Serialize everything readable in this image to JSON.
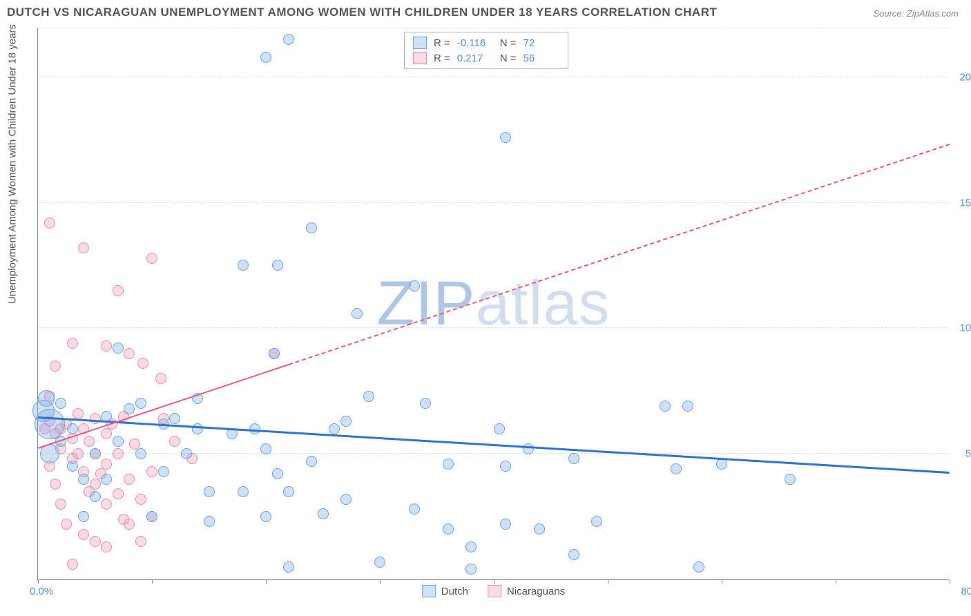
{
  "title": "DUTCH VS NICARAGUAN UNEMPLOYMENT AMONG WOMEN WITH CHILDREN UNDER 18 YEARS CORRELATION CHART",
  "source": "Source: ZipAtlas.com",
  "ylabel": "Unemployment Among Women with Children Under 18 years",
  "watermark": {
    "z": "ZIP",
    "rest": "atlas"
  },
  "chart": {
    "type": "scatter",
    "xlim": [
      0,
      80
    ],
    "ylim": [
      0,
      22
    ],
    "xticks": [
      0,
      10,
      20,
      30,
      40,
      50,
      60,
      70,
      80
    ],
    "xtick_labels": {
      "left": "0.0%",
      "right": "80.0%"
    },
    "yticks": [
      5,
      10,
      15,
      20
    ],
    "ytick_labels": [
      "5.0%",
      "10.0%",
      "15.0%",
      "20.0%"
    ],
    "grid_color": "#dddddd",
    "axis_color": "#888888",
    "background_color": "#ffffff"
  },
  "series": {
    "dutch": {
      "label": "Dutch",
      "fill": "rgba(120,170,230,0.35)",
      "stroke": "#6aa3e0",
      "marker_radius": 8,
      "trend": {
        "color": "#2e74d0",
        "width": 3,
        "x1": 0,
        "y1": 6.4,
        "x2": 80,
        "y2": 4.2,
        "dash_after_x": 80
      },
      "R": "-0.116",
      "N": "72",
      "points": [
        [
          0.5,
          6.7,
          16
        ],
        [
          1,
          6.2,
          22
        ],
        [
          1,
          5,
          14
        ],
        [
          0.7,
          7.2,
          12
        ],
        [
          22,
          21.5,
          8
        ],
        [
          20,
          20.8,
          8
        ],
        [
          41,
          17.6,
          8
        ],
        [
          24,
          14,
          8
        ],
        [
          18,
          12.5,
          8
        ],
        [
          21,
          12.5,
          8
        ],
        [
          33,
          11.7,
          8
        ],
        [
          28,
          10.6,
          8
        ],
        [
          20.7,
          9,
          8
        ],
        [
          7,
          9.2,
          8
        ],
        [
          6,
          6.5,
          8
        ],
        [
          9,
          7,
          8
        ],
        [
          11,
          6.2,
          8
        ],
        [
          12,
          6.4,
          8
        ],
        [
          13,
          5,
          8
        ],
        [
          14,
          6,
          8
        ],
        [
          15,
          3.5,
          8
        ],
        [
          15,
          2.3,
          8
        ],
        [
          17,
          5.8,
          8
        ],
        [
          18,
          3.5,
          8
        ],
        [
          19,
          6,
          8
        ],
        [
          20,
          5.2,
          8
        ],
        [
          20,
          2.5,
          8
        ],
        [
          21,
          4.2,
          8
        ],
        [
          22,
          3.5,
          8
        ],
        [
          22,
          0.5,
          8
        ],
        [
          24,
          4.7,
          8
        ],
        [
          25,
          2.6,
          8
        ],
        [
          26,
          6,
          8
        ],
        [
          27,
          6.3,
          8
        ],
        [
          27,
          3.2,
          8
        ],
        [
          29,
          7.3,
          8
        ],
        [
          30,
          0.7,
          8
        ],
        [
          33,
          2.8,
          8
        ],
        [
          34,
          7,
          8
        ],
        [
          36,
          4.6,
          8
        ],
        [
          36,
          2.0,
          8
        ],
        [
          38,
          1.3,
          8
        ],
        [
          38,
          0.4,
          8
        ],
        [
          40.5,
          6,
          8
        ],
        [
          41,
          2.2,
          8
        ],
        [
          41,
          4.5,
          8
        ],
        [
          43,
          5.2,
          8
        ],
        [
          44,
          2,
          8
        ],
        [
          47,
          1.0,
          8
        ],
        [
          47,
          4.8,
          8
        ],
        [
          49,
          2.3,
          8
        ],
        [
          55,
          6.9,
          8
        ],
        [
          56,
          4.4,
          8
        ],
        [
          57,
          6.9,
          8
        ],
        [
          58,
          0.5,
          8
        ],
        [
          60,
          4.6,
          8
        ],
        [
          66,
          4.0,
          8
        ],
        [
          5,
          5.0,
          8
        ],
        [
          4,
          4.0,
          8
        ],
        [
          3,
          6.0,
          8
        ],
        [
          2,
          7.0,
          8
        ],
        [
          2,
          5.5,
          8
        ],
        [
          3,
          4.5,
          8
        ],
        [
          7,
          5.5,
          8
        ],
        [
          8,
          6.8,
          8
        ],
        [
          10,
          2.5,
          8
        ],
        [
          11,
          4.3,
          8
        ],
        [
          14,
          7.2,
          8
        ],
        [
          9,
          5,
          8
        ],
        [
          6,
          4,
          8
        ],
        [
          5,
          3.3,
          8
        ],
        [
          4,
          2.5,
          8
        ]
      ]
    },
    "nicaraguans": {
      "label": "Nicaraguans",
      "fill": "rgba(240,150,175,0.35)",
      "stroke": "#e88fa8",
      "marker_radius": 8,
      "trend": {
        "color": "#e35a84",
        "width": 2,
        "x1": 0,
        "y1": 5.2,
        "x2": 80,
        "y2": 17.3,
        "dash_after_x": 22
      },
      "R": "0.217",
      "N": "56",
      "points": [
        [
          1,
          14.2,
          8
        ],
        [
          4,
          13.2,
          8
        ],
        [
          10,
          12.8,
          8
        ],
        [
          7,
          11.5,
          8
        ],
        [
          3,
          9.4,
          8
        ],
        [
          6,
          9.3,
          8
        ],
        [
          1.5,
          8.5,
          8
        ],
        [
          8,
          9,
          8
        ],
        [
          9.2,
          8.6,
          8
        ],
        [
          10.8,
          8.0,
          8
        ],
        [
          11,
          6.4,
          8
        ],
        [
          12,
          5.5,
          8
        ],
        [
          13.5,
          4.8,
          8
        ],
        [
          1,
          6.3,
          8
        ],
        [
          1.5,
          5.8,
          8
        ],
        [
          2,
          6.0,
          8
        ],
        [
          2,
          5.2,
          8
        ],
        [
          2.5,
          6.2,
          8
        ],
        [
          3,
          5.6,
          8
        ],
        [
          3,
          4.8,
          8
        ],
        [
          3.5,
          6.6,
          8
        ],
        [
          3.5,
          5.0,
          8
        ],
        [
          4,
          6.0,
          8
        ],
        [
          4,
          4.3,
          8
        ],
        [
          4.5,
          5.5,
          8
        ],
        [
          4.5,
          3.5,
          8
        ],
        [
          5,
          6.4,
          8
        ],
        [
          5,
          5.0,
          8
        ],
        [
          5,
          3.8,
          8
        ],
        [
          5.5,
          4.2,
          8
        ],
        [
          6,
          5.8,
          8
        ],
        [
          6,
          4.6,
          8
        ],
        [
          6,
          3.0,
          8
        ],
        [
          6.5,
          6.2,
          8
        ],
        [
          7,
          5.0,
          8
        ],
        [
          7,
          3.4,
          8
        ],
        [
          7.5,
          2.4,
          8
        ],
        [
          7.5,
          6.5,
          8
        ],
        [
          8,
          4.0,
          8
        ],
        [
          8,
          2.2,
          8
        ],
        [
          8.5,
          5.4,
          8
        ],
        [
          9,
          3.2,
          8
        ],
        [
          9,
          1.5,
          8
        ],
        [
          10,
          4.3,
          8
        ],
        [
          10,
          2.5,
          8
        ],
        [
          1,
          4.5,
          8
        ],
        [
          1.5,
          3.8,
          8
        ],
        [
          2,
          3.0,
          8
        ],
        [
          2.5,
          2.2,
          8
        ],
        [
          3,
          0.6,
          8
        ],
        [
          6,
          1.3,
          8
        ],
        [
          4,
          1.8,
          8
        ],
        [
          5,
          1.5,
          8
        ],
        [
          20.7,
          9,
          8
        ],
        [
          1,
          7.3,
          8
        ],
        [
          0.6,
          6.0,
          8
        ]
      ]
    }
  },
  "legend_top": {
    "r_label": "R =",
    "n_label": "N ="
  }
}
